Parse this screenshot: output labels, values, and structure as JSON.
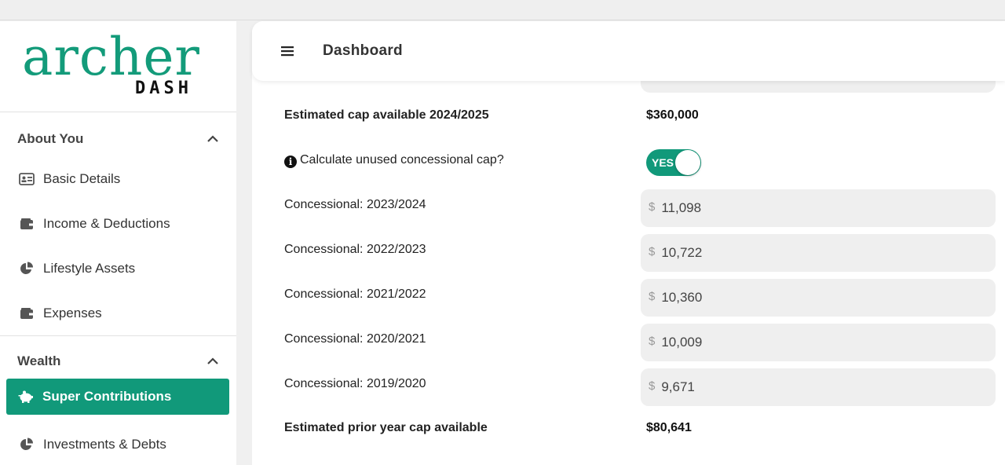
{
  "brand": {
    "name": "archer",
    "sub": "DASH",
    "color": "#139b7a"
  },
  "header": {
    "title": "Dashboard",
    "menu_icon": "hamburger-icon"
  },
  "sidebar": {
    "sections": [
      {
        "title": "About You",
        "items": [
          {
            "label": "Basic Details",
            "icon": "id-card-icon"
          },
          {
            "label": "Income & Deductions",
            "icon": "wallet-icon"
          },
          {
            "label": "Lifestyle Assets",
            "icon": "pie-chart-icon"
          },
          {
            "label": "Expenses",
            "icon": "wallet-icon"
          }
        ]
      },
      {
        "title": "Wealth",
        "items": [
          {
            "label": "Super Contributions",
            "icon": "piggy-bank-icon",
            "active": true
          },
          {
            "label": "Investments & Debts",
            "icon": "pie-chart-icon"
          }
        ]
      }
    ]
  },
  "main": {
    "estimated_cap_label": "Estimated cap available 2024/2025",
    "estimated_cap_value": "$360,000",
    "unused_cap_label": "Calculate unused concessional cap?",
    "unused_cap_toggle": "YES",
    "currency": "$",
    "concessional": [
      {
        "label": "Concessional: 2023/2024",
        "value": "11,098"
      },
      {
        "label": "Concessional: 2022/2023",
        "value": "10,722"
      },
      {
        "label": "Concessional: 2021/2022",
        "value": "10,360"
      },
      {
        "label": "Concessional: 2020/2021",
        "value": "10,009"
      },
      {
        "label": "Concessional: 2019/2020",
        "value": "9,671"
      }
    ],
    "prior_cap_label": "Estimated prior year cap available",
    "prior_cap_value": "$80,641"
  },
  "colors": {
    "accent": "#11997a",
    "field_bg": "#efefef"
  }
}
